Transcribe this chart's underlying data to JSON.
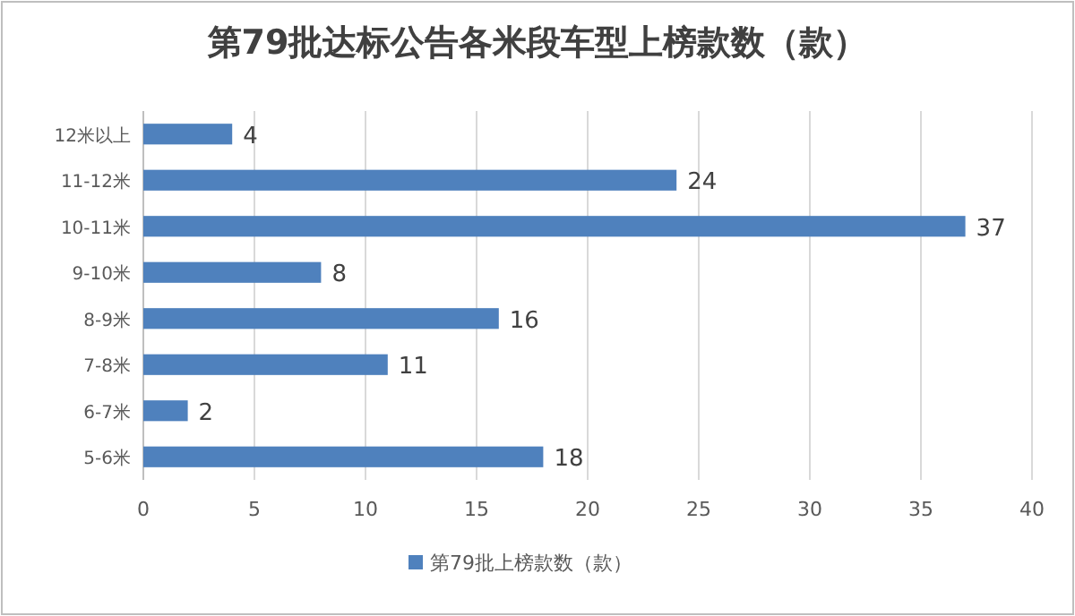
{
  "chart_data": {
    "type": "bar",
    "orientation": "horizontal",
    "title": "第79批达标公告各米段车型上榜款数（款）",
    "categories": [
      "12米以上",
      "11-12米",
      "10-11米",
      "9-10米",
      "8-9米",
      "7-8米",
      "6-7米",
      "5-6米"
    ],
    "series": [
      {
        "name": "第79批上榜款数（款）",
        "color": "#4f81bd",
        "values": [
          4,
          24,
          37,
          8,
          16,
          11,
          2,
          18
        ]
      }
    ],
    "xlim": [
      0,
      40
    ],
    "xticks": [
      0,
      5,
      10,
      15,
      20,
      25,
      30,
      35,
      40
    ],
    "grid": "x",
    "legend": "bottom",
    "data_labels": true
  }
}
